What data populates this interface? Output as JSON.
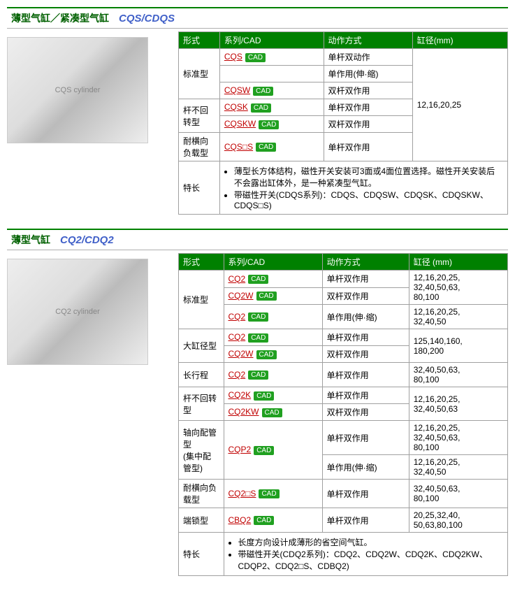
{
  "cad_label": "CAD",
  "sections": [
    {
      "title_cn": "薄型气缸／紧凑型气缸",
      "title_en": "CQS/CDQS",
      "img_alt": "CQS cylinder",
      "headers": [
        "形式",
        "系列/CAD",
        "动作方式",
        "缸径(mm)"
      ],
      "groups": [
        {
          "form": "标准型",
          "rows": [
            {
              "series": "CQS",
              "action": "单杆双动作"
            },
            {
              "series": "",
              "action": "单作用(伸·缩)"
            },
            {
              "series": "CQSW",
              "action": "双杆双作用"
            }
          ],
          "bore": "12,16,20,25",
          "bore_rows": 6
        },
        {
          "form": "杆不回转型",
          "rows": [
            {
              "series": "CQSK",
              "action": "单杆双作用"
            },
            {
              "series": "CQSKW",
              "action": "双杆双作用"
            }
          ]
        },
        {
          "form": "耐横向负载型",
          "rows": [
            {
              "series": "CQS□S",
              "action": "单杆双作用"
            }
          ]
        }
      ],
      "features_label": "特长",
      "features": [
        "薄型长方体结构，磁性开关安装可3面或4面位置选择。磁性开关安装后不会露出缸体外，是一种紧凑型气缸。",
        "带磁性开关(CDQS系列)：CDQS、CDQSW、CDQSK、CDQSKW、CDQS□S)"
      ]
    },
    {
      "title_cn": "薄型气缸",
      "title_en": "CQ2/CDQ2",
      "img_alt": "CQ2 cylinder",
      "headers": [
        "形式",
        "系列/CAD",
        "动作方式",
        "缸径 (mm)"
      ],
      "groups": [
        {
          "form": "标准型",
          "rows": [
            {
              "series": "CQ2",
              "action": "单杆双作用",
              "bore": "12,16,20,25,\n32,40,50,63,\n80,100",
              "bore_rows": 2
            },
            {
              "series": "CQ2W",
              "action": "双杆双作用"
            },
            {
              "series": "CQ2",
              "action": "单作用(伸·缩)",
              "bore": "12,16,20,25,\n32,40,50"
            }
          ]
        },
        {
          "form": "大缸径型",
          "rows": [
            {
              "series": "CQ2",
              "action": "单杆双作用",
              "bore": "125,140,160,\n180,200",
              "bore_rows": 2
            },
            {
              "series": "CQ2W",
              "action": "双杆双作用"
            }
          ]
        },
        {
          "form": "长行程",
          "rows": [
            {
              "series": "CQ2",
              "action": "单杆双作用",
              "bore": "32,40,50,63,\n80,100"
            }
          ]
        },
        {
          "form": "杆不回转型",
          "rows": [
            {
              "series": "CQ2K",
              "action": "单杆双作用",
              "bore": "12,16,20,25,\n32,40,50,63",
              "bore_rows": 2
            },
            {
              "series": "CQ2KW",
              "action": "双杆双作用"
            }
          ]
        },
        {
          "form": "轴向配管型\n(集中配管型)",
          "rows": [
            {
              "series": "CQP2",
              "action": "单杆双作用",
              "bore": "12,16,20,25,\n32,40,50,63,\n80,100",
              "sub_rows": 2
            },
            {
              "action": "单作用(伸·缩)",
              "bore": "12,16,20,25,\n32,40,50"
            }
          ]
        },
        {
          "form": "耐横向负载型",
          "rows": [
            {
              "series": "CQ2□S",
              "action": "单杆双作用",
              "bore": "32,40,50,63,\n80,100"
            }
          ]
        },
        {
          "form": "端锁型",
          "rows": [
            {
              "series": "CBQ2",
              "action": "单杆双作用",
              "bore": "20,25,32,40,\n50,63,80,100"
            }
          ]
        }
      ],
      "features_label": "特长",
      "features": [
        "长度方向设计成薄形的省空间气缸。",
        "带磁性开关(CDQ2系列)：CDQ2、CDQ2W、CDQ2K、CDQ2KW、CDQP2、CDQ2□S、CDBQ2)"
      ]
    }
  ]
}
